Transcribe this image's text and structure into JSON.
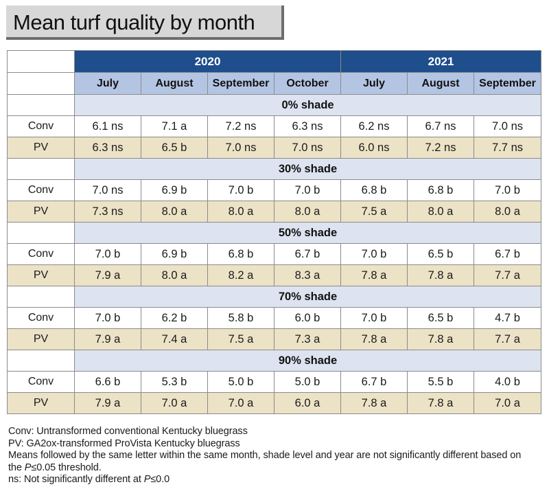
{
  "title": "Mean turf quality by month",
  "years": [
    "2020",
    "2021"
  ],
  "months_2020": [
    "July",
    "August",
    "September",
    "October"
  ],
  "months_2021": [
    "July",
    "August",
    "September"
  ],
  "sections": [
    {
      "shade": "0% shade",
      "rows": [
        {
          "label": "Conv",
          "values": [
            "6.1 ns",
            "7.1 a",
            "7.2 ns",
            "6.3 ns",
            "6.2 ns",
            "6.7 ns",
            "7.0 ns"
          ]
        },
        {
          "label": "PV",
          "values": [
            "6.3 ns",
            "6.5 b",
            "7.0 ns",
            "7.0 ns",
            "6.0 ns",
            "7.2 ns",
            "7.7 ns"
          ]
        }
      ]
    },
    {
      "shade": "30% shade",
      "rows": [
        {
          "label": "Conv",
          "values": [
            "7.0 ns",
            "6.9 b",
            "7.0 b",
            "7.0 b",
            "6.8 b",
            "6.8 b",
            "7.0 b"
          ]
        },
        {
          "label": "PV",
          "values": [
            "7.3 ns",
            "8.0 a",
            "8.0 a",
            "8.0 a",
            "7.5 a",
            "8.0 a",
            "8.0 a"
          ]
        }
      ]
    },
    {
      "shade": "50% shade",
      "rows": [
        {
          "label": "Conv",
          "values": [
            "7.0 b",
            "6.9 b",
            "6.8 b",
            "6.7 b",
            "7.0 b",
            "6.5 b",
            "6.7 b"
          ]
        },
        {
          "label": "PV",
          "values": [
            "7.9 a",
            "8.0 a",
            "8.2 a",
            "8.3 a",
            "7.8 a",
            "7.8 a",
            "7.7 a"
          ]
        }
      ]
    },
    {
      "shade": "70% shade",
      "rows": [
        {
          "label": "Conv",
          "values": [
            "7.0 b",
            "6.2 b",
            "5.8 b",
            "6.0 b",
            "7.0 b",
            "6.5 b",
            "4.7 b"
          ]
        },
        {
          "label": "PV",
          "values": [
            "7.9 a",
            "7.4 a",
            "7.5 a",
            "7.3 a",
            "7.8 a",
            "7.8 a",
            "7.7 a"
          ]
        }
      ]
    },
    {
      "shade": "90% shade",
      "rows": [
        {
          "label": "Conv",
          "values": [
            "6.6 b",
            "5.3 b",
            "5.0 b",
            "5.0 b",
            "6.7 b",
            "5.5 b",
            "4.0 b"
          ]
        },
        {
          "label": "PV",
          "values": [
            "7.9 a",
            "7.0 a",
            "7.0 a",
            "6.0 a",
            "7.8 a",
            "7.8 a",
            "7.0 a"
          ]
        }
      ]
    }
  ],
  "notes": {
    "conv": "Conv: Untransformed conventional Kentucky bluegrass",
    "pv": "PV: GA2ox-transformed ProVista Kentucky bluegrass",
    "means_line1": "Means followed by the same letter within the same month, shade level and year are not significantly different based on",
    "means_line2_pre": "the ",
    "p_symbol": "P",
    "means_line2_post": "≤0.05 threshold.",
    "ns_pre": "ns: Not significantly different at ",
    "ns_post": "≤0.0"
  }
}
